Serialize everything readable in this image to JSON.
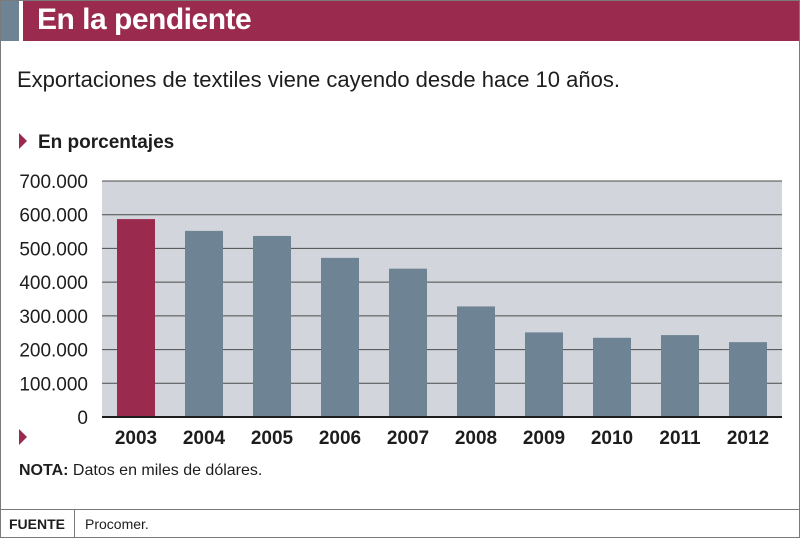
{
  "header": {
    "title": "En la pendiente"
  },
  "subtitle": "Exportaciones de textiles viene cayendo desde hace 10 años.",
  "unit_label": "En porcentajes",
  "note": {
    "label": "NOTA:",
    "text": "Datos en miles de dólares."
  },
  "footer": {
    "label": "FUENTE",
    "value": "Procomer."
  },
  "colors": {
    "highlight": "#9b2a4f",
    "bar": "#6e8494",
    "plot_bg": "#d2d6dc"
  },
  "chart_data": {
    "type": "bar",
    "title": "",
    "xlabel": "",
    "ylabel": "",
    "categories": [
      "2003",
      "2004",
      "2005",
      "2006",
      "2007",
      "2008",
      "2009",
      "2010",
      "2011",
      "2012"
    ],
    "values": [
      587000,
      552000,
      537000,
      472000,
      440000,
      328000,
      251000,
      235000,
      243000,
      222000
    ],
    "highlight_index": 0,
    "ylim": [
      0,
      700000
    ],
    "yticks": [
      0,
      100000,
      200000,
      300000,
      400000,
      500000,
      600000,
      700000
    ],
    "ytick_labels": [
      "0",
      "100.000",
      "200.000",
      "300.000",
      "400.000",
      "500.000",
      "600.000",
      "700.000"
    ],
    "grid": true,
    "legend": "none"
  }
}
